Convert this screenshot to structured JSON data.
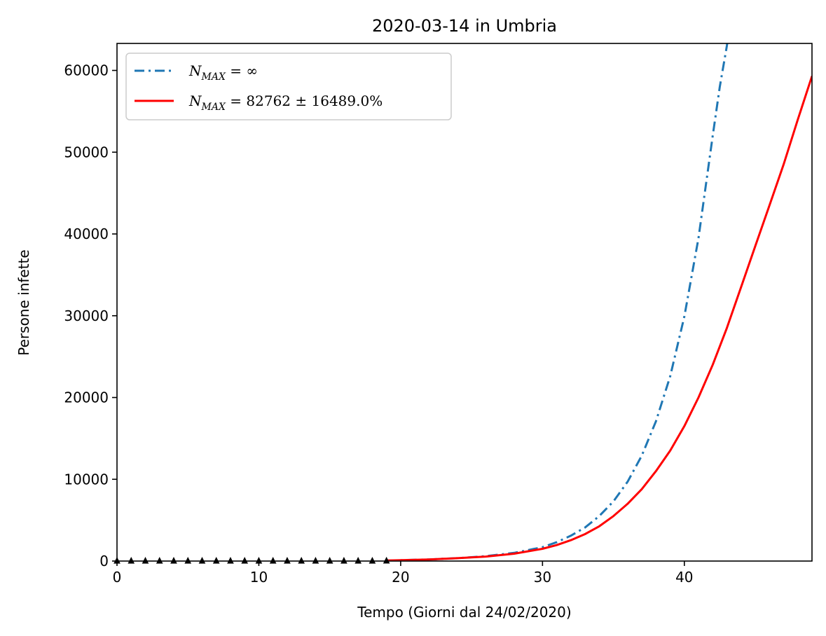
{
  "chart_data": {
    "type": "line",
    "title": "2020-03-14 in Umbria",
    "xlabel": "Tempo (Giorni dal 24/02/2020)",
    "ylabel": "Persone infette",
    "xlim": [
      0,
      49
    ],
    "ylim": [
      0,
      63300
    ],
    "xticks": [
      0,
      10,
      20,
      30,
      40
    ],
    "yticks": [
      0,
      10000,
      20000,
      30000,
      40000,
      50000,
      60000
    ],
    "grid": false,
    "legend_position": "top-left",
    "series": [
      {
        "name_main": "N",
        "name_sub": "MAX",
        "name_rest": " = ∞",
        "style": "dashdot",
        "color": "#1f77b4",
        "x": [
          19,
          20,
          22,
          24,
          26,
          28,
          30,
          31,
          32,
          33,
          34,
          35,
          36,
          37,
          38,
          39,
          40,
          41,
          42,
          42.5,
          43,
          43.2
        ],
        "y": [
          60,
          100,
          200,
          350,
          600,
          1000,
          1700,
          2300,
          3100,
          4100,
          5500,
          7300,
          9700,
          12900,
          17100,
          22600,
          29900,
          39500,
          52000,
          58000,
          63000,
          65500
        ]
      },
      {
        "name_main": "N",
        "name_sub": "MAX",
        "name_rest": " = 82762 ± 16489.0%",
        "style": "solid",
        "color": "#ff0000",
        "x": [
          19,
          20,
          22,
          24,
          26,
          28,
          30,
          31,
          32,
          33,
          34,
          35,
          36,
          37,
          38,
          39,
          40,
          41,
          42,
          43,
          44,
          45,
          46,
          47,
          48,
          49
        ],
        "y": [
          60,
          100,
          200,
          350,
          550,
          900,
          1500,
          1950,
          2550,
          3300,
          4250,
          5500,
          7000,
          8800,
          11000,
          13500,
          16500,
          20000,
          24000,
          28500,
          33500,
          38500,
          43500,
          48500,
          54000,
          59300
        ]
      }
    ],
    "observations": {
      "marker": "triangle",
      "color": "#000000",
      "x": [
        0,
        1,
        2,
        3,
        4,
        5,
        6,
        7,
        8,
        9,
        10,
        11,
        12,
        13,
        14,
        15,
        16,
        17,
        18,
        19
      ],
      "y": [
        0,
        0,
        0,
        0,
        0,
        0,
        0,
        0,
        0,
        0,
        0,
        0,
        0,
        0,
        0,
        0,
        0,
        0,
        2,
        9
      ]
    }
  }
}
